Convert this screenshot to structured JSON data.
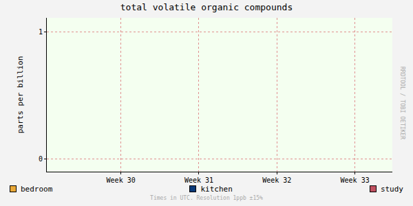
{
  "chart_data": {
    "type": "line",
    "title": "total volatile organic compounds",
    "y_label": "parts per billion",
    "x": [],
    "series": [
      {
        "name": "bedroom",
        "color": "#e8a838",
        "values": []
      },
      {
        "name": "kitchen",
        "color": "#0a3a7a",
        "values": []
      },
      {
        "name": "study",
        "color": "#c05060",
        "values": []
      }
    ],
    "xlim": [
      29.05,
      33.48
    ],
    "xticks": [
      {
        "value": 30,
        "label": "Week 30"
      },
      {
        "value": 31,
        "label": "Week 31"
      },
      {
        "value": 32,
        "label": "Week 32"
      },
      {
        "value": 33,
        "label": "Week 33"
      }
    ],
    "ylim": [
      -0.1,
      1.11
    ],
    "yticks": [
      0,
      1
    ],
    "grid": true,
    "legend": "bottom",
    "annotations": [
      "Times in UTC. Resolution 1ppb ±15%",
      "RRDTOOL / TOBI OETIKER"
    ]
  }
}
